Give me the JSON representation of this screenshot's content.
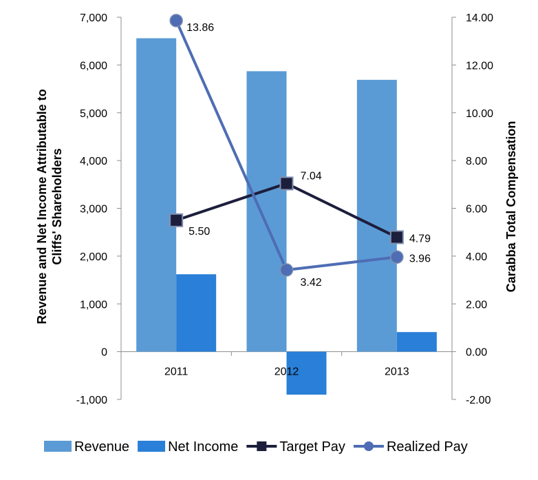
{
  "chart_data": {
    "type": "bar",
    "categories": [
      "2011",
      "2012",
      "2013"
    ],
    "series": [
      {
        "name": "Revenue",
        "kind": "bar",
        "axis": "left",
        "color": "#5b9bd5",
        "values": [
          6560,
          5870,
          5690
        ]
      },
      {
        "name": "Net Income",
        "kind": "bar",
        "axis": "left",
        "color": "#2a7fd8",
        "values": [
          1620,
          -900,
          410
        ]
      },
      {
        "name": "Target Pay",
        "kind": "line",
        "axis": "right",
        "color": "#1c1e3c",
        "marker": "square",
        "values": [
          5.5,
          7.04,
          4.79
        ],
        "labels": [
          "5.50",
          "7.04",
          "4.79"
        ]
      },
      {
        "name": "Realized Pay",
        "kind": "line",
        "axis": "right",
        "color": "#4e6db4",
        "marker": "circle",
        "values": [
          13.86,
          3.42,
          3.96
        ],
        "labels": [
          "13.86",
          "3.42",
          "3.96"
        ]
      }
    ],
    "ylabel": "Revenue and Net Income Attributable to Cliffs' Shareholders",
    "y2label": "Carabba Total Compensation",
    "ylim": [
      -1000,
      7000
    ],
    "y2lim": [
      -2,
      14
    ],
    "yticks": [
      "-1,000",
      "0",
      "1,000",
      "2,000",
      "3,000",
      "4,000",
      "5,000",
      "6,000",
      "7,000"
    ],
    "y2ticks": [
      "-2.00",
      "0.00",
      "2.00",
      "4.00",
      "6.00",
      "8.00",
      "10.00",
      "12.00",
      "14.00"
    ],
    "legend_position": "bottom",
    "grid": false
  }
}
